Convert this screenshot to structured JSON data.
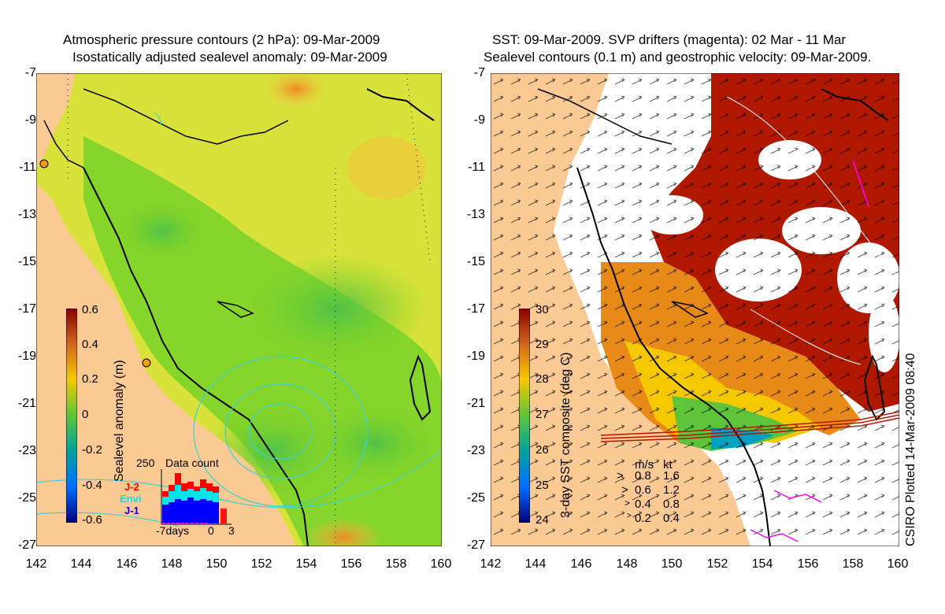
{
  "left_panel": {
    "title_line1": "Atmospheric pressure contours (2 hPa): 09-Mar-2009",
    "title_line2": "Isostatically adjusted sealevel anomaly: 09-Mar-2009",
    "colorbar_label": "Sealevel anomaly (m)",
    "colorbar_ticks": [
      "0.6",
      "0.4",
      "0.2",
      "0",
      "-0.2",
      "-0.4",
      "-0.6"
    ],
    "inset": {
      "title": "Data count",
      "ymax_label": "250",
      "satellites": [
        {
          "name": "J-2",
          "color": "#ff0000"
        },
        {
          "name": "Envi",
          "color": "#00e5e5"
        },
        {
          "name": "J-1",
          "color": "#0000ff"
        }
      ],
      "xlabel_left": "-7days",
      "xlabel_mid": "0",
      "xlabel_right": "3"
    }
  },
  "right_panel": {
    "title_line1": "SST: 09-Mar-2009. SVP drifters (magenta): 02 Mar - 11 Mar",
    "title_line2": "Sealevel contours (0.1 m) and geostrophic velocity: 09-Mar-2009.",
    "colorbar_label": "3-day SST composite (deg C)",
    "colorbar_ticks": [
      "30",
      "29",
      "28",
      "27",
      "26",
      "25",
      "24"
    ],
    "velocity_legend": {
      "header_ms": "m/s",
      "header_kt": "kt",
      "rows": [
        {
          "ms": "0.8",
          "kt": "1.6"
        },
        {
          "ms": "0.6",
          "kt": "1.2"
        },
        {
          "ms": "0.4",
          "kt": "0.8"
        },
        {
          "ms": "0.2",
          "kt": "0.4"
        }
      ]
    },
    "credit": "CSIRO Plotted 14-Mar-2009 08:40"
  },
  "axes": {
    "y_ticks": [
      "-7",
      "-9",
      "-11",
      "-13",
      "-15",
      "-17",
      "-19",
      "-21",
      "-23",
      "-25",
      "-27"
    ],
    "x_ticks": [
      "142",
      "144",
      "146",
      "148",
      "150",
      "152",
      "154",
      "156",
      "158",
      "160"
    ]
  },
  "colors": {
    "land": "#fbc993",
    "ocean_green": "#7ed321",
    "coast": "#000000",
    "contour_cyan": "#40d0d0",
    "warm_sst": "#b01800",
    "drifter": "#ff00ff"
  }
}
